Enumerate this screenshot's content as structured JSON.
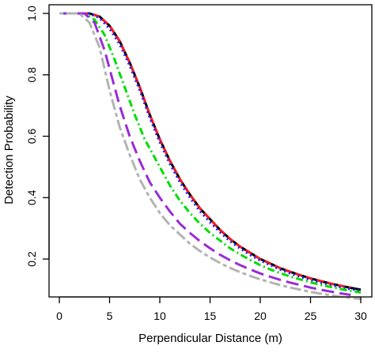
{
  "chart_data": {
    "type": "line",
    "title": "",
    "xlabel": "Perpendicular Distance (m)",
    "ylabel": "Detection Probability",
    "xlim": [
      0,
      30
    ],
    "ylim": [
      0.1,
      1.0
    ],
    "xticks": [
      0,
      5,
      10,
      15,
      20,
      25,
      30
    ],
    "yticks": [
      0.2,
      0.4,
      0.6,
      0.8,
      1.0
    ],
    "xtick_labels": [
      "0",
      "5",
      "10",
      "15",
      "20",
      "25",
      "30"
    ],
    "ytick_labels": [
      "0.2",
      "0.4",
      "0.6",
      "0.8",
      "1.0"
    ],
    "grid": false,
    "legend": "none",
    "series": [
      {
        "color": "#000000",
        "dash": "solid",
        "x": [
          0,
          3,
          4,
          5,
          6,
          7,
          8,
          9,
          10,
          11,
          12,
          13,
          14,
          15,
          16,
          17,
          18,
          19,
          20,
          21,
          22,
          23,
          24,
          25,
          26,
          27,
          28,
          29,
          30
        ],
        "y": [
          1.0,
          1.0,
          0.99,
          0.96,
          0.91,
          0.84,
          0.76,
          0.67,
          0.59,
          0.52,
          0.46,
          0.41,
          0.365,
          0.33,
          0.295,
          0.265,
          0.24,
          0.22,
          0.2,
          0.185,
          0.17,
          0.158,
          0.147,
          0.137,
          0.128,
          0.12,
          0.113,
          0.106,
          0.1
        ]
      },
      {
        "color": "#ff1a1a",
        "dash": "dashed",
        "x": [
          0,
          3,
          4,
          5,
          6,
          7,
          8,
          9,
          10,
          11,
          12,
          13,
          14,
          15,
          16,
          17,
          18,
          19,
          20,
          21,
          22,
          23,
          24,
          25,
          26,
          27,
          28,
          29
        ],
        "y": [
          1.0,
          1.0,
          0.99,
          0.96,
          0.91,
          0.84,
          0.76,
          0.67,
          0.59,
          0.52,
          0.46,
          0.41,
          0.365,
          0.33,
          0.295,
          0.265,
          0.24,
          0.22,
          0.2,
          0.185,
          0.17,
          0.158,
          0.147,
          0.137,
          0.128,
          0.12,
          0.113,
          0.107
        ]
      },
      {
        "color": "#1a1aff",
        "dash": "dotted",
        "x": [
          0,
          3,
          4,
          5,
          6,
          7,
          8,
          9,
          10,
          11,
          12,
          13,
          14,
          15,
          16,
          17,
          18,
          19,
          20,
          21,
          22,
          23,
          24,
          25,
          26,
          27,
          28,
          29,
          30
        ],
        "y": [
          1.0,
          1.0,
          0.985,
          0.95,
          0.9,
          0.83,
          0.75,
          0.66,
          0.58,
          0.51,
          0.45,
          0.4,
          0.355,
          0.32,
          0.287,
          0.258,
          0.234,
          0.213,
          0.195,
          0.18,
          0.165,
          0.153,
          0.142,
          0.132,
          0.123,
          0.115,
          0.108,
          0.102,
          0.097
        ]
      },
      {
        "color": "#00dd00",
        "dash": "dotdash",
        "x": [
          0,
          2.5,
          3.5,
          4.5,
          5.5,
          6.5,
          7.5,
          8.5,
          10,
          11,
          12,
          13,
          14,
          15,
          16,
          17,
          18,
          19,
          20,
          21,
          22,
          23,
          24,
          25,
          26,
          27,
          28,
          29,
          30
        ],
        "y": [
          1.0,
          1.0,
          0.98,
          0.93,
          0.85,
          0.76,
          0.67,
          0.59,
          0.5,
          0.44,
          0.39,
          0.35,
          0.315,
          0.285,
          0.26,
          0.235,
          0.215,
          0.197,
          0.18,
          0.166,
          0.154,
          0.143,
          0.133,
          0.124,
          0.116,
          0.109,
          0.102,
          0.096,
          0.091
        ]
      },
      {
        "color": "#9a2bd6",
        "dash": "longdash",
        "x": [
          0,
          2.5,
          3.5,
          4.5,
          5,
          6,
          7,
          8,
          9,
          10,
          11,
          12,
          13,
          14,
          15,
          16,
          17,
          18,
          19,
          20,
          21,
          22,
          23,
          24,
          25,
          26,
          27,
          28,
          29
        ],
        "y": [
          1.0,
          1.0,
          0.97,
          0.88,
          0.82,
          0.7,
          0.6,
          0.52,
          0.45,
          0.4,
          0.355,
          0.315,
          0.285,
          0.258,
          0.235,
          0.214,
          0.196,
          0.18,
          0.166,
          0.153,
          0.142,
          0.132,
          0.123,
          0.115,
          0.107,
          0.1,
          0.094,
          0.088,
          0.083
        ]
      },
      {
        "color": "#b3b3b3",
        "dash": "twodash",
        "x": [
          0,
          2,
          3,
          4,
          5,
          6,
          7,
          8,
          9,
          10,
          11,
          12,
          13,
          14,
          15,
          16,
          17,
          18,
          19,
          20,
          21,
          22,
          23,
          24,
          25,
          26,
          27,
          28,
          29,
          30
        ],
        "y": [
          1.0,
          1.0,
          0.97,
          0.89,
          0.75,
          0.63,
          0.54,
          0.46,
          0.4,
          0.35,
          0.31,
          0.28,
          0.25,
          0.226,
          0.205,
          0.187,
          0.171,
          0.157,
          0.145,
          0.134,
          0.124,
          0.115,
          0.107,
          0.1,
          0.093,
          0.087,
          0.082,
          0.077,
          0.073,
          0.07
        ]
      }
    ]
  }
}
